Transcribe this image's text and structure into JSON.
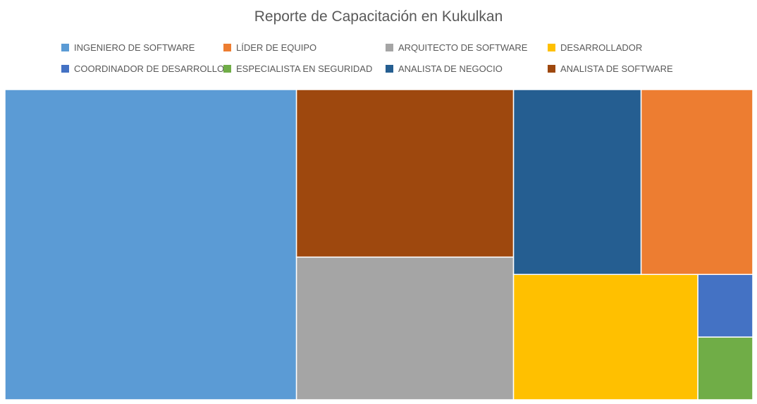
{
  "chart_data": {
    "type": "treemap",
    "title": "Reporte de Capacitación en Kukulkan",
    "legend_position": "top",
    "series": [
      {
        "name": "INGENIERO DE SOFTWARE",
        "value": 184,
        "color": "#5B9BD5"
      },
      {
        "name": "LÍDER DE EQUIPO",
        "value": 42,
        "color": "#ED7D31"
      },
      {
        "name": "ARQUITECTO DE SOFTWARE",
        "value": 63,
        "color": "#A5A5A5"
      },
      {
        "name": "DESARROLLADOR",
        "value": 47,
        "color": "#FFC000"
      },
      {
        "name": "COORDINADOR DE DESARROLLO",
        "value": 7,
        "color": "#4472C4"
      },
      {
        "name": "ESPECIALISTA EN SEGURIDAD",
        "value": 7,
        "color": "#70AD47"
      },
      {
        "name": "ANALISTA DE NEGOCIO",
        "value": 48,
        "color": "#255E91"
      },
      {
        "name": "ANALISTA DE SOFTWARE",
        "value": 74,
        "color": "#9E480E"
      }
    ]
  }
}
